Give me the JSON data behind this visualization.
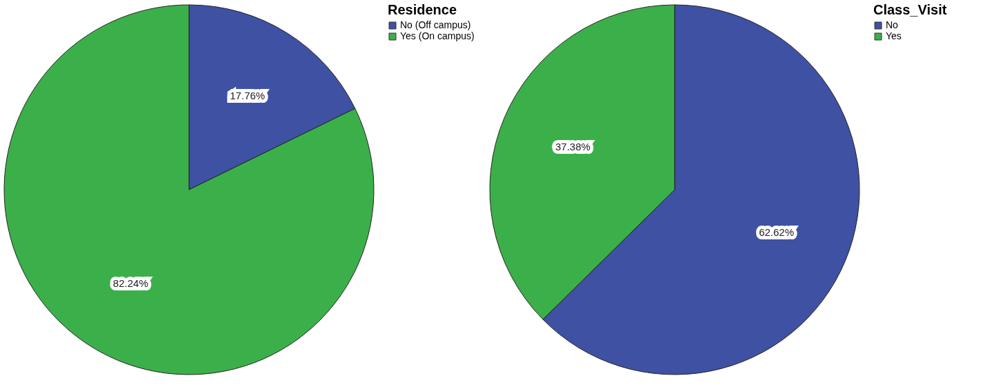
{
  "chart_data": [
    {
      "type": "pie",
      "legend_title": "Residence",
      "categories": [
        "No (Off campus)",
        "Yes (On campus)"
      ],
      "values": [
        17.76,
        82.24
      ],
      "colors": [
        "#3f51a3",
        "#3bb04a"
      ],
      "value_labels": [
        "17.76%",
        "82.24%"
      ],
      "legend": "top right"
    },
    {
      "type": "pie",
      "legend_title": "Class_Visit",
      "categories": [
        "No",
        "Yes"
      ],
      "values": [
        62.62,
        37.38
      ],
      "colors": [
        "#3f51a3",
        "#3bb04a"
      ],
      "value_labels": [
        "62.62%",
        "37.38%"
      ],
      "legend": "top right"
    }
  ]
}
